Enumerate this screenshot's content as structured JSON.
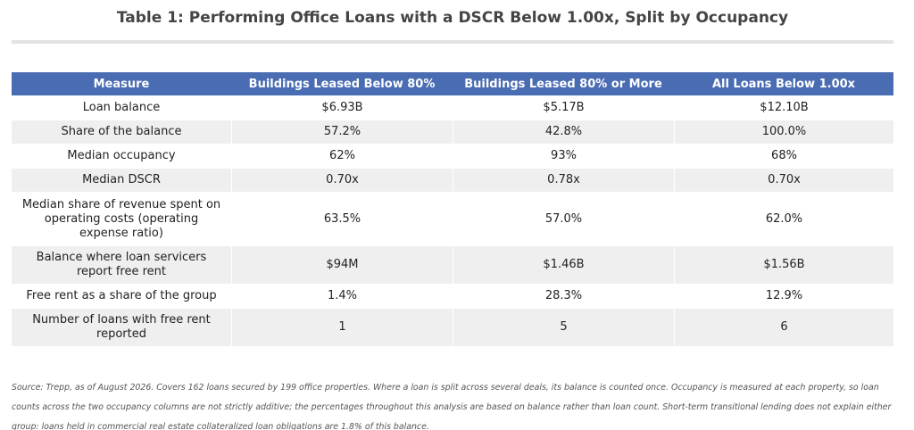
{
  "title": "Table 1: Performing Office Loans with a DSCR Below 1.00x, Split by Occupancy",
  "table": {
    "headers": [
      "Measure",
      "Buildings Leased Below 80%",
      "Buildings Leased 80% or More",
      "All Loans Below 1.00x"
    ],
    "rows": [
      [
        "Loan balance",
        "$6.93B",
        "$5.17B",
        "$12.10B"
      ],
      [
        "Share of the balance",
        "57.2%",
        "42.8%",
        "100.0%"
      ],
      [
        "Median occupancy",
        "62%",
        "93%",
        "68%"
      ],
      [
        "Median DSCR",
        "0.70x",
        "0.78x",
        "0.70x"
      ],
      [
        "Median share of revenue spent on operating costs (operating expense ratio)",
        "63.5%",
        "57.0%",
        "62.0%"
      ],
      [
        "Balance where loan servicers report free rent",
        "$94M",
        "$1.46B",
        "$1.56B"
      ],
      [
        "Free rent as a share of the group",
        "1.4%",
        "28.3%",
        "12.9%"
      ],
      [
        "Number of loans with free rent reported",
        "1",
        "5",
        "6"
      ]
    ]
  },
  "footnote": "Source: Trepp, as of August 2026. Covers 162 loans secured by 199 office properties. Where a loan is split across several deals, its balance is counted once. Occupancy is measured at each property, so loan counts across the two occupancy columns are not strictly additive; the percentages throughout this analysis are based on balance rather than loan count. Short-term transitional lending does not explain either group: loans held in commercial real estate collateralized loan obligations are 1.8% of this balance.",
  "colors": {
    "header_bg": "#4a6cb3",
    "alt_row_bg": "#efefef",
    "title_color": "#444444"
  }
}
